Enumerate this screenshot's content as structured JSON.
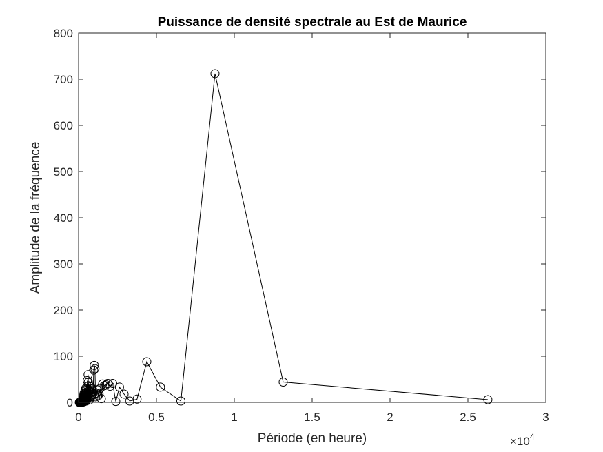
{
  "chart_data": {
    "type": "line",
    "title": "Puissance de densité spectrale au Est de Maurice",
    "xlabel": "Période (en heure)",
    "ylabel": "Amplitude de la fréquence",
    "x_exponent_label": "×10",
    "x_exponent_power": "4",
    "xlim": [
      0,
      30000
    ],
    "ylim": [
      0,
      800
    ],
    "xticks": [
      0,
      5000,
      10000,
      15000,
      20000,
      25000,
      30000
    ],
    "xtick_labels": [
      "0",
      "0.5",
      "1",
      "1.5",
      "2",
      "2.5",
      "3"
    ],
    "yticks": [
      0,
      100,
      200,
      300,
      400,
      500,
      600,
      700,
      800
    ],
    "ytick_labels": [
      "0",
      "100",
      "200",
      "300",
      "400",
      "500",
      "600",
      "700",
      "800"
    ],
    "marker": "circle",
    "line_color": "#000000",
    "grid": false,
    "series": [
      {
        "points": [
          [
            26280,
            6
          ],
          [
            13140,
            44
          ],
          [
            8760,
            712
          ],
          [
            6570,
            3
          ],
          [
            5256,
            33
          ],
          [
            4380,
            88
          ],
          [
            3754,
            7
          ],
          [
            3285,
            3
          ],
          [
            2920,
            18
          ],
          [
            2628,
            33
          ],
          [
            2389,
            2
          ],
          [
            2190,
            41
          ],
          [
            2022,
            35
          ],
          [
            1877,
            41
          ],
          [
            1752,
            38
          ],
          [
            1643,
            36
          ],
          [
            1546,
            40
          ],
          [
            1460,
            8
          ],
          [
            1383,
            30
          ],
          [
            1314,
            18
          ],
          [
            1251,
            15
          ],
          [
            1195,
            27
          ],
          [
            1143,
            20
          ],
          [
            1095,
            12
          ],
          [
            1051,
            73
          ],
          [
            1011,
            80
          ],
          [
            973,
            70
          ],
          [
            939,
            25
          ],
          [
            906,
            18
          ],
          [
            876,
            30
          ],
          [
            848,
            16
          ],
          [
            821,
            22
          ],
          [
            796,
            12
          ],
          [
            773,
            34
          ],
          [
            751,
            20
          ],
          [
            730,
            14
          ],
          [
            710,
            9
          ],
          [
            692,
            5
          ],
          [
            674,
            25
          ],
          [
            657,
            36
          ],
          [
            641,
            28
          ],
          [
            626,
            44
          ],
          [
            611,
            60
          ],
          [
            597,
            15
          ],
          [
            584,
            8
          ],
          [
            571,
            20
          ],
          [
            559,
            47
          ],
          [
            548,
            12
          ],
          [
            536,
            30
          ],
          [
            526,
            5
          ],
          [
            515,
            18
          ],
          [
            505,
            26
          ],
          [
            496,
            10
          ],
          [
            487,
            3
          ],
          [
            478,
            22
          ],
          [
            469,
            14
          ],
          [
            461,
            6
          ],
          [
            453,
            30
          ],
          [
            445,
            20
          ],
          [
            438,
            9
          ],
          [
            430,
            4
          ],
          [
            423,
            16
          ],
          [
            417,
            12
          ],
          [
            410,
            25
          ],
          [
            404,
            7
          ],
          [
            398,
            3
          ],
          [
            392,
            10
          ],
          [
            386,
            18
          ],
          [
            380,
            5
          ],
          [
            375,
            2
          ],
          [
            370,
            14
          ],
          [
            365,
            8
          ],
          [
            360,
            3
          ],
          [
            355,
            20
          ],
          [
            350,
            6
          ],
          [
            345,
            2
          ],
          [
            341,
            11
          ],
          [
            336,
            4
          ],
          [
            332,
            1
          ],
          [
            328,
            9
          ],
          [
            324,
            3
          ],
          [
            320,
            15
          ],
          [
            316,
            5
          ],
          [
            313,
            2
          ],
          [
            309,
            7
          ],
          [
            305,
            1
          ],
          [
            302,
            4
          ],
          [
            298,
            10
          ],
          [
            295,
            2
          ],
          [
            292,
            6
          ],
          [
            289,
            1
          ],
          [
            285,
            3
          ],
          [
            283,
            8
          ],
          [
            280,
            2
          ],
          [
            277,
            5
          ],
          [
            274,
            1
          ],
          [
            271,
            3
          ],
          [
            268,
            2
          ],
          [
            266,
            6
          ],
          [
            263,
            1
          ],
          [
            260,
            2
          ],
          [
            255,
            4
          ],
          [
            250,
            1
          ],
          [
            245,
            3
          ],
          [
            240,
            1
          ],
          [
            235,
            2
          ],
          [
            230,
            1
          ],
          [
            225,
            3
          ],
          [
            220,
            1
          ],
          [
            215,
            2
          ],
          [
            210,
            1
          ],
          [
            205,
            1
          ],
          [
            200,
            2
          ],
          [
            195,
            1
          ],
          [
            190,
            1
          ],
          [
            185,
            2
          ],
          [
            180,
            1
          ],
          [
            175,
            1
          ],
          [
            170,
            1
          ],
          [
            165,
            1
          ],
          [
            160,
            1
          ],
          [
            150,
            1
          ],
          [
            140,
            1
          ],
          [
            130,
            0
          ],
          [
            120,
            1
          ],
          [
            110,
            0
          ],
          [
            100,
            0
          ],
          [
            90,
            0
          ],
          [
            80,
            0
          ],
          [
            70,
            0
          ],
          [
            60,
            0
          ],
          [
            50,
            0
          ]
        ]
      }
    ]
  }
}
